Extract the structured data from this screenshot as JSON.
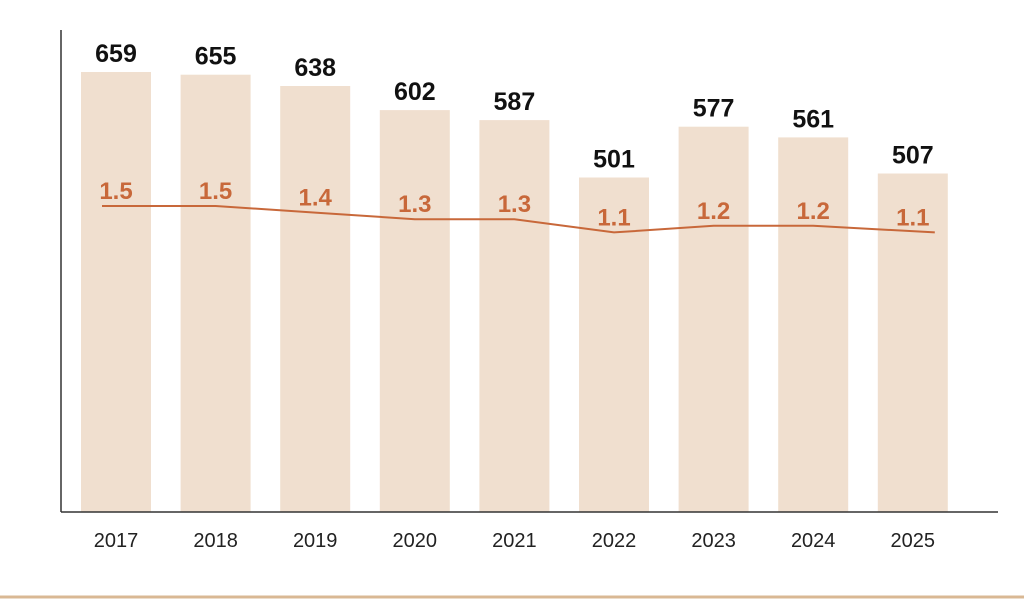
{
  "chart_data": {
    "type": "bar",
    "categories": [
      "2017",
      "2018",
      "2019",
      "2020",
      "2021",
      "2022",
      "2023",
      "2024",
      "2025"
    ],
    "series": [
      {
        "type": "bar",
        "values": [
          659,
          655,
          638,
          602,
          587,
          501,
          577,
          561,
          507
        ],
        "color": "#f0dfcf"
      },
      {
        "type": "line",
        "values": [
          1.5,
          1.5,
          1.4,
          1.3,
          1.3,
          1.1,
          1.2,
          1.2,
          1.1
        ],
        "color": "#c8683a"
      }
    ],
    "title": "",
    "xlabel": "",
    "ylabel": "",
    "grid": false,
    "legend": "none"
  },
  "colors": {
    "axis": "#333333",
    "footer_rule": "#d9b894"
  }
}
